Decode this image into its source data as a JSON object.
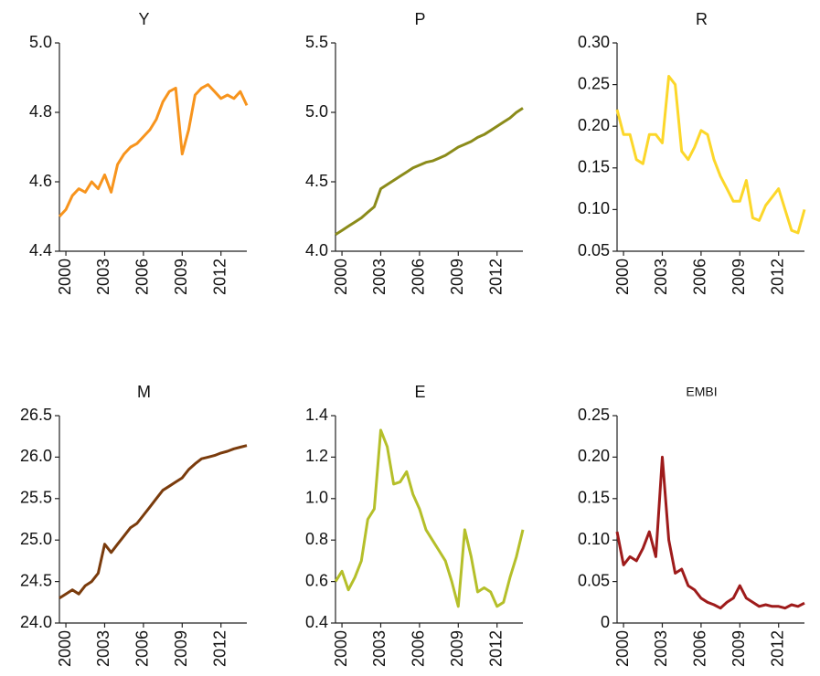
{
  "chart_data": [
    {
      "type": "line",
      "title": "Y",
      "color": "#f7941d",
      "x": [
        1999.5,
        2000,
        2000.5,
        2001,
        2001.5,
        2002,
        2002.5,
        2003,
        2003.5,
        2004,
        2004.5,
        2005,
        2005.5,
        2006,
        2006.5,
        2007,
        2007.5,
        2008,
        2008.5,
        2009,
        2009.5,
        2010,
        2010.5,
        2011,
        2011.5,
        2012,
        2012.5,
        2013,
        2013.5,
        2014
      ],
      "values": [
        4.5,
        4.52,
        4.56,
        4.58,
        4.57,
        4.6,
        4.58,
        4.62,
        4.57,
        4.65,
        4.68,
        4.7,
        4.71,
        4.73,
        4.75,
        4.78,
        4.83,
        4.86,
        4.87,
        4.68,
        4.75,
        4.85,
        4.87,
        4.88,
        4.86,
        4.84,
        4.85,
        4.84,
        4.86,
        4.82
      ],
      "xlim": [
        1999.5,
        2014
      ],
      "xticks": [
        2000,
        2003,
        2006,
        2009,
        2012
      ],
      "ylim": [
        4.4,
        5.0
      ],
      "yticks": [
        4.4,
        4.6,
        4.8,
        {
          "value": 5,
          "label": "5.0"
        }
      ]
    },
    {
      "type": "line",
      "title": "P",
      "color": "#8b8b1a",
      "x": [
        1999.5,
        2000,
        2000.5,
        2001,
        2001.5,
        2002,
        2002.5,
        2003,
        2003.5,
        2004,
        2004.5,
        2005,
        2005.5,
        2006,
        2006.5,
        2007,
        2007.5,
        2008,
        2008.5,
        2009,
        2009.5,
        2010,
        2010.5,
        2011,
        2011.5,
        2012,
        2012.5,
        2013,
        2013.5,
        2014
      ],
      "values": [
        4.12,
        4.15,
        4.18,
        4.21,
        4.24,
        4.28,
        4.32,
        4.45,
        4.48,
        4.51,
        4.54,
        4.57,
        4.6,
        4.62,
        4.64,
        4.65,
        4.67,
        4.69,
        4.72,
        4.75,
        4.77,
        4.79,
        4.82,
        4.84,
        4.87,
        4.9,
        4.93,
        4.96,
        5.0,
        5.03
      ],
      "xlim": [
        1999.5,
        2014
      ],
      "xticks": [
        2000,
        2003,
        2006,
        2009,
        2012
      ],
      "ylim": [
        4.0,
        5.5
      ],
      "yticks": [
        {
          "value": 4,
          "label": "4.0"
        },
        4.5,
        {
          "value": 5,
          "label": "5.0"
        },
        5.5
      ]
    },
    {
      "type": "line",
      "title": "R",
      "color": "#fcd72a",
      "x": [
        1999.5,
        2000,
        2000.5,
        2001,
        2001.5,
        2002,
        2002.5,
        2003,
        2003.5,
        2004,
        2004.5,
        2005,
        2005.5,
        2006,
        2006.5,
        2007,
        2007.5,
        2008,
        2008.5,
        2009,
        2009.5,
        2010,
        2010.5,
        2011,
        2011.5,
        2012,
        2012.5,
        2013,
        2013.5,
        2014
      ],
      "values": [
        0.22,
        0.19,
        0.19,
        0.16,
        0.155,
        0.19,
        0.19,
        0.18,
        0.26,
        0.25,
        0.17,
        0.16,
        0.175,
        0.195,
        0.19,
        0.16,
        0.14,
        0.125,
        0.11,
        0.11,
        0.135,
        0.09,
        0.087,
        0.105,
        0.115,
        0.125,
        0.1,
        0.075,
        0.072,
        0.1
      ],
      "xlim": [
        1999.5,
        2014
      ],
      "xticks": [
        2000,
        2003,
        2006,
        2009,
        2012
      ],
      "ylim": [
        0.05,
        0.3
      ],
      "yticks": [
        0.05,
        {
          "value": 0.1,
          "label": "0.10"
        },
        0.15,
        {
          "value": 0.2,
          "label": "0.20"
        },
        0.25,
        {
          "value": 0.3,
          "label": "0.30"
        }
      ]
    },
    {
      "type": "line",
      "title": "M",
      "color": "#7a3b0c",
      "x": [
        1999.5,
        2000,
        2000.5,
        2001,
        2001.5,
        2002,
        2002.5,
        2003,
        2003.5,
        2004,
        2004.5,
        2005,
        2005.5,
        2006,
        2006.5,
        2007,
        2007.5,
        2008,
        2008.5,
        2009,
        2009.5,
        2010,
        2010.5,
        2011,
        2011.5,
        2012,
        2012.5,
        2013,
        2013.5,
        2014
      ],
      "values": [
        24.3,
        24.35,
        24.4,
        24.35,
        24.45,
        24.5,
        24.6,
        24.95,
        24.85,
        24.95,
        25.05,
        25.15,
        25.2,
        25.3,
        25.4,
        25.5,
        25.6,
        25.65,
        25.7,
        25.75,
        25.85,
        25.92,
        25.98,
        26.0,
        26.02,
        26.05,
        26.07,
        26.1,
        26.12,
        26.14
      ],
      "xlim": [
        1999.5,
        2014
      ],
      "xticks": [
        2000,
        2003,
        2006,
        2009,
        2012
      ],
      "ylim": [
        24.0,
        26.5
      ],
      "yticks": [
        {
          "value": 24,
          "label": "24.0"
        },
        24.5,
        {
          "value": 25,
          "label": "25.0"
        },
        25.5,
        {
          "value": 26,
          "label": "26.0"
        },
        26.5
      ]
    },
    {
      "type": "line",
      "title": "E",
      "color": "#b5bf2a",
      "x": [
        1999.5,
        2000,
        2000.5,
        2001,
        2001.5,
        2002,
        2002.5,
        2003,
        2003.5,
        2004,
        2004.5,
        2005,
        2005.5,
        2006,
        2006.5,
        2007,
        2007.5,
        2008,
        2008.5,
        2009,
        2009.5,
        2010,
        2010.5,
        2011,
        2011.5,
        2012,
        2012.5,
        2013,
        2013.5,
        2014
      ],
      "values": [
        0.6,
        0.65,
        0.56,
        0.62,
        0.7,
        0.9,
        0.95,
        1.33,
        1.25,
        1.07,
        1.08,
        1.13,
        1.02,
        0.95,
        0.85,
        0.8,
        0.75,
        0.7,
        0.6,
        0.48,
        0.85,
        0.72,
        0.55,
        0.57,
        0.55,
        0.48,
        0.5,
        0.62,
        0.72,
        0.85
      ],
      "xlim": [
        1999.5,
        2014
      ],
      "xticks": [
        2000,
        2003,
        2006,
        2009,
        2012
      ],
      "ylim": [
        0.4,
        1.4
      ],
      "yticks": [
        0.4,
        0.6,
        0.8,
        {
          "value": 1,
          "label": "1.0"
        },
        1.2,
        1.4
      ]
    },
    {
      "type": "line",
      "title": "EMBI",
      "color": "#9e1b1b",
      "x": [
        1999.5,
        2000,
        2000.5,
        2001,
        2001.5,
        2002,
        2002.5,
        2003,
        2003.5,
        2004,
        2004.5,
        2005,
        2005.5,
        2006,
        2006.5,
        2007,
        2007.5,
        2008,
        2008.5,
        2009,
        2009.5,
        2010,
        2010.5,
        2011,
        2011.5,
        2012,
        2012.5,
        2013,
        2013.5,
        2014
      ],
      "values": [
        0.11,
        0.07,
        0.08,
        0.075,
        0.09,
        0.11,
        0.08,
        0.2,
        0.1,
        0.06,
        0.065,
        0.045,
        0.04,
        0.03,
        0.025,
        0.022,
        0.018,
        0.025,
        0.03,
        0.045,
        0.03,
        0.025,
        0.02,
        0.022,
        0.02,
        0.02,
        0.018,
        0.022,
        0.02,
        0.024
      ],
      "xlim": [
        1999.5,
        2014
      ],
      "xticks": [
        2000,
        2003,
        2006,
        2009,
        2012
      ],
      "ylim": [
        0,
        0.25
      ],
      "yticks": [
        0,
        0.05,
        {
          "value": 0.1,
          "label": "0.10"
        },
        0.15,
        {
          "value": 0.2,
          "label": "0.20"
        },
        0.25
      ]
    }
  ]
}
